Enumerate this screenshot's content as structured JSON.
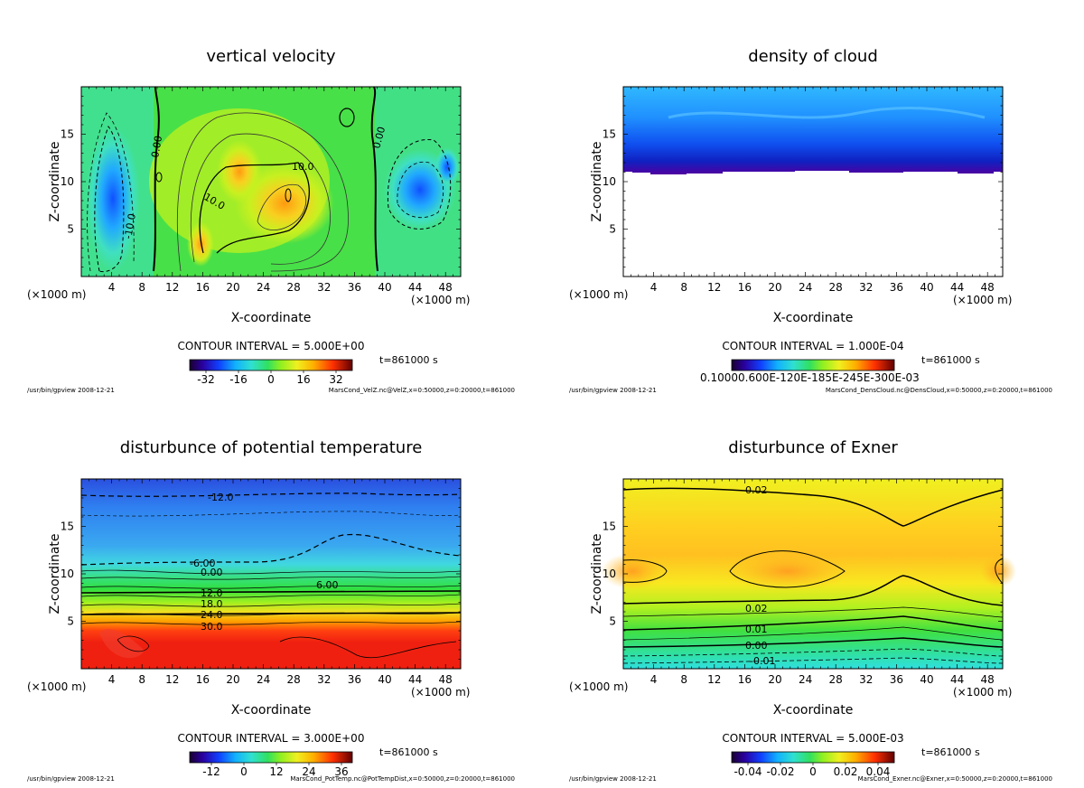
{
  "chart_data": [
    {
      "type": "heatmap",
      "title": "vertical velocity",
      "xlabel": "X-coordinate",
      "ylabel": "Z-coordinate",
      "x_ticks": [
        "4",
        "8",
        "12",
        "16",
        "20",
        "24",
        "28",
        "32",
        "36",
        "40",
        "44",
        "48"
      ],
      "y_ticks": [
        "5",
        "10",
        "15"
      ],
      "xlim": [
        0,
        50
      ],
      "ylim": [
        0,
        20
      ],
      "x_unit_left": "(×1000 m)",
      "x_unit_right": "(×1000 m)",
      "contour_interval": "CONTOUR INTERVAL = 5.000E+00",
      "time": "t=861000 s",
      "colorbar_ticks": [
        "-32",
        "-16",
        "0",
        "16",
        "32"
      ],
      "contour_labels": [
        "0.00",
        "0.00",
        "10.0",
        "10.0",
        "-10.0"
      ],
      "footer_left": "/usr/bin/gpview  2008-12-21",
      "footer_right": "MarsCond_VelZ.nc@VelZ,x=0:50000,z=0:20000,t=861000"
    },
    {
      "type": "heatmap",
      "title": "density of cloud",
      "xlabel": "X-coordinate",
      "ylabel": "Z-coordinate",
      "x_ticks": [
        "4",
        "8",
        "12",
        "16",
        "20",
        "24",
        "28",
        "32",
        "36",
        "40",
        "44",
        "48"
      ],
      "y_ticks": [
        "5",
        "10",
        "15"
      ],
      "xlim": [
        0,
        50
      ],
      "ylim": [
        0,
        20
      ],
      "x_unit_left": "(×1000 m)",
      "x_unit_right": "(×1000 m)",
      "contour_interval": "CONTOUR INTERVAL = 1.000E-04",
      "time": "t=861000 s",
      "colorbar_ticks": [
        "0.10000.600E-120E-185E-245E-300E-03"
      ],
      "footer_left": "/usr/bin/gpview  2008-12-21",
      "footer_right": "MarsCond_DensCloud.nc@DensCloud,x=0:50000,z=0:20000,t=861000"
    },
    {
      "type": "heatmap",
      "title": "disturbunce of potential temperature",
      "xlabel": "X-coordinate",
      "ylabel": "Z-coordinate",
      "x_ticks": [
        "4",
        "8",
        "12",
        "16",
        "20",
        "24",
        "28",
        "32",
        "36",
        "40",
        "44",
        "48"
      ],
      "y_ticks": [
        "5",
        "10",
        "15"
      ],
      "xlim": [
        0,
        50
      ],
      "ylim": [
        0,
        20
      ],
      "x_unit_left": "(×1000 m)",
      "x_unit_right": "(×1000 m)",
      "contour_interval": "CONTOUR INTERVAL = 3.000E+00",
      "time": "t=861000 s",
      "colorbar_ticks": [
        "-12",
        "0",
        "12",
        "24",
        "36"
      ],
      "contour_labels": [
        "-12.0",
        "-6.00",
        "0.00",
        "6.00",
        "12.0",
        "18.0",
        "24.0",
        "30.0"
      ],
      "footer_left": "/usr/bin/gpview  2008-12-21",
      "footer_right": "MarsCond_PotTemp.nc@PotTempDist,x=0:50000,z=0:20000,t=861000"
    },
    {
      "type": "heatmap",
      "title": "disturbunce of Exner",
      "xlabel": "X-coordinate",
      "ylabel": "Z-coordinate",
      "x_ticks": [
        "4",
        "8",
        "12",
        "16",
        "20",
        "24",
        "28",
        "32",
        "36",
        "40",
        "44",
        "48"
      ],
      "y_ticks": [
        "5",
        "10",
        "15"
      ],
      "xlim": [
        0,
        50
      ],
      "ylim": [
        0,
        20
      ],
      "x_unit_left": "(×1000 m)",
      "x_unit_right": "(×1000 m)",
      "contour_interval": "CONTOUR INTERVAL = 5.000E-03",
      "time": "t=861000 s",
      "colorbar_ticks": [
        "-0.04",
        "-0.02",
        "0",
        "0.02",
        "0.04"
      ],
      "contour_labels": [
        "0.02",
        "0.02",
        "0.01",
        "0.00",
        "-0.01"
      ],
      "footer_left": "/usr/bin/gpview  2008-12-21",
      "footer_right": "MarsCond_Exner.nc@Exner,x=0:50000,z=0:20000,t=861000"
    }
  ]
}
